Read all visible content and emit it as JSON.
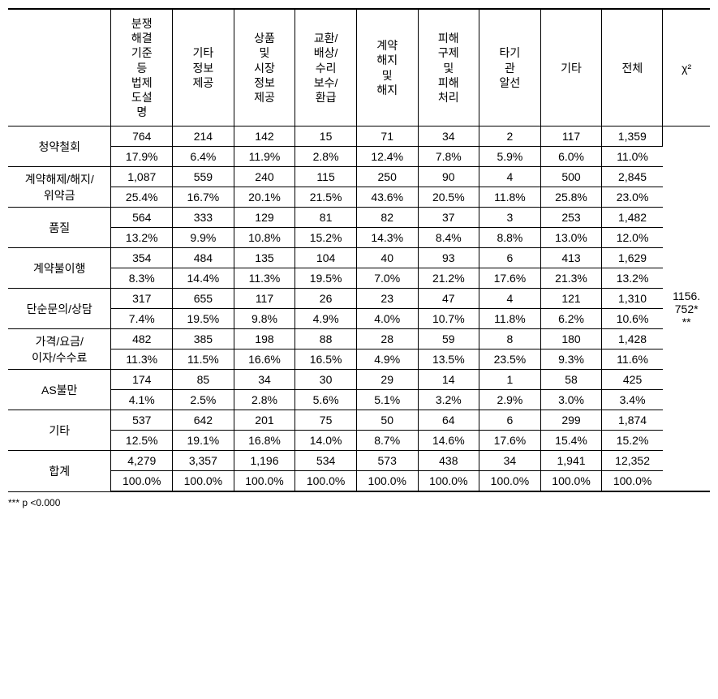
{
  "columns": [
    "",
    "분쟁\n해결\n기준\n등\n법제\n도설\n명",
    "기타\n정보\n제공",
    "상품\n및\n시장\n정보\n제공",
    "교환/\n배상/\n수리\n보수/\n환급",
    "계약\n해지\n및\n해지",
    "피해\n구제\n및\n피해\n처리",
    "타기\n관\n알선",
    "기타",
    "전체",
    "χ²"
  ],
  "rows": [
    {
      "label": "청약철회",
      "counts": [
        "764",
        "214",
        "142",
        "15",
        "71",
        "34",
        "2",
        "117",
        "1,359"
      ],
      "pcts": [
        "17.9%",
        "6.4%",
        "11.9%",
        "2.8%",
        "12.4%",
        "7.8%",
        "5.9%",
        "6.0%",
        "11.0%"
      ]
    },
    {
      "label": "계약해제/해지/\n위약금",
      "counts": [
        "1,087",
        "559",
        "240",
        "115",
        "250",
        "90",
        "4",
        "500",
        "2,845"
      ],
      "pcts": [
        "25.4%",
        "16.7%",
        "20.1%",
        "21.5%",
        "43.6%",
        "20.5%",
        "11.8%",
        "25.8%",
        "23.0%"
      ]
    },
    {
      "label": "품질",
      "counts": [
        "564",
        "333",
        "129",
        "81",
        "82",
        "37",
        "3",
        "253",
        "1,482"
      ],
      "pcts": [
        "13.2%",
        "9.9%",
        "10.8%",
        "15.2%",
        "14.3%",
        "8.4%",
        "8.8%",
        "13.0%",
        "12.0%"
      ]
    },
    {
      "label": "계약불이행",
      "counts": [
        "354",
        "484",
        "135",
        "104",
        "40",
        "93",
        "6",
        "413",
        "1,629"
      ],
      "pcts": [
        "8.3%",
        "14.4%",
        "11.3%",
        "19.5%",
        "7.0%",
        "21.2%",
        "17.6%",
        "21.3%",
        "13.2%"
      ]
    },
    {
      "label": "단순문의/상담",
      "counts": [
        "317",
        "655",
        "117",
        "26",
        "23",
        "47",
        "4",
        "121",
        "1,310"
      ],
      "pcts": [
        "7.4%",
        "19.5%",
        "9.8%",
        "4.9%",
        "4.0%",
        "10.7%",
        "11.8%",
        "6.2%",
        "10.6%"
      ]
    },
    {
      "label": "가격/요금/\n이자/수수료",
      "counts": [
        "482",
        "385",
        "198",
        "88",
        "28",
        "59",
        "8",
        "180",
        "1,428"
      ],
      "pcts": [
        "11.3%",
        "11.5%",
        "16.6%",
        "16.5%",
        "4.9%",
        "13.5%",
        "23.5%",
        "9.3%",
        "11.6%"
      ]
    },
    {
      "label": "AS불만",
      "counts": [
        "174",
        "85",
        "34",
        "30",
        "29",
        "14",
        "1",
        "58",
        "425"
      ],
      "pcts": [
        "4.1%",
        "2.5%",
        "2.8%",
        "5.6%",
        "5.1%",
        "3.2%",
        "2.9%",
        "3.0%",
        "3.4%"
      ]
    },
    {
      "label": "기타",
      "counts": [
        "537",
        "642",
        "201",
        "75",
        "50",
        "64",
        "6",
        "299",
        "1,874"
      ],
      "pcts": [
        "12.5%",
        "19.1%",
        "16.8%",
        "14.0%",
        "8.7%",
        "14.6%",
        "17.6%",
        "15.4%",
        "15.2%"
      ]
    },
    {
      "label": "합계",
      "counts": [
        "4,279",
        "3,357",
        "1,196",
        "534",
        "573",
        "438",
        "34",
        "1,941",
        "12,352"
      ],
      "pcts": [
        "100.0%",
        "100.0%",
        "100.0%",
        "100.0%",
        "100.0%",
        "100.0%",
        "100.0%",
        "100.0%",
        "100.0%"
      ]
    }
  ],
  "chi_value": "1156.\n752*\n**",
  "footnote": "*** p <0.000"
}
